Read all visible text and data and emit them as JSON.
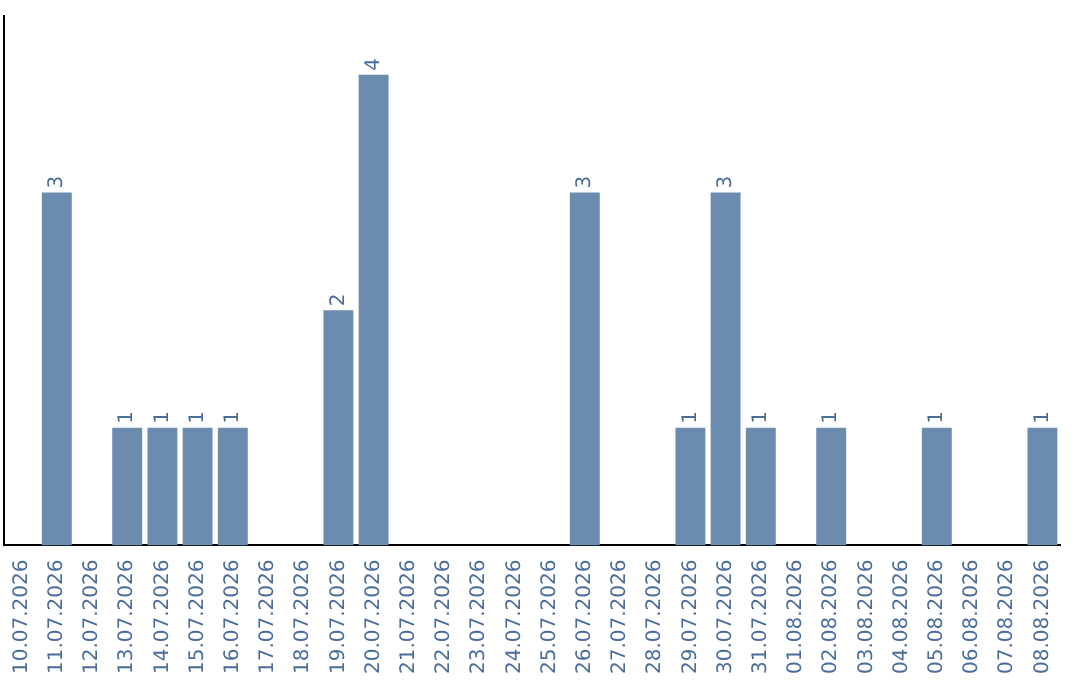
{
  "chart_data": {
    "type": "bar",
    "categories": [
      "10.07.2026",
      "11.07.2026",
      "12.07.2026",
      "13.07.2026",
      "14.07.2026",
      "15.07.2026",
      "16.07.2026",
      "17.07.2026",
      "18.07.2026",
      "19.07.2026",
      "20.07.2026",
      "21.07.2026",
      "22.07.2026",
      "23.07.2026",
      "24.07.2026",
      "25.07.2026",
      "26.07.2026",
      "27.07.2026",
      "28.07.2026",
      "29.07.2026",
      "30.07.2026",
      "31.07.2026",
      "01.08.2026",
      "02.08.2026",
      "03.08.2026",
      "04.08.2026",
      "05.08.2026",
      "06.08.2026",
      "07.08.2026",
      "08.08.2026"
    ],
    "values": [
      0,
      3,
      0,
      1,
      1,
      1,
      1,
      0,
      0,
      2,
      4,
      0,
      0,
      0,
      0,
      0,
      3,
      0,
      0,
      1,
      3,
      1,
      0,
      1,
      0,
      0,
      1,
      0,
      0,
      1
    ],
    "value_labels": [
      null,
      "3",
      null,
      "1",
      "1",
      "1",
      "1",
      null,
      null,
      "2",
      "4",
      null,
      null,
      null,
      null,
      null,
      "3",
      null,
      null,
      "1",
      "3",
      "1",
      null,
      "1",
      null,
      null,
      "1",
      null,
      null,
      "1"
    ],
    "color": "#6b8cae",
    "grid": false,
    "legend": false
  }
}
